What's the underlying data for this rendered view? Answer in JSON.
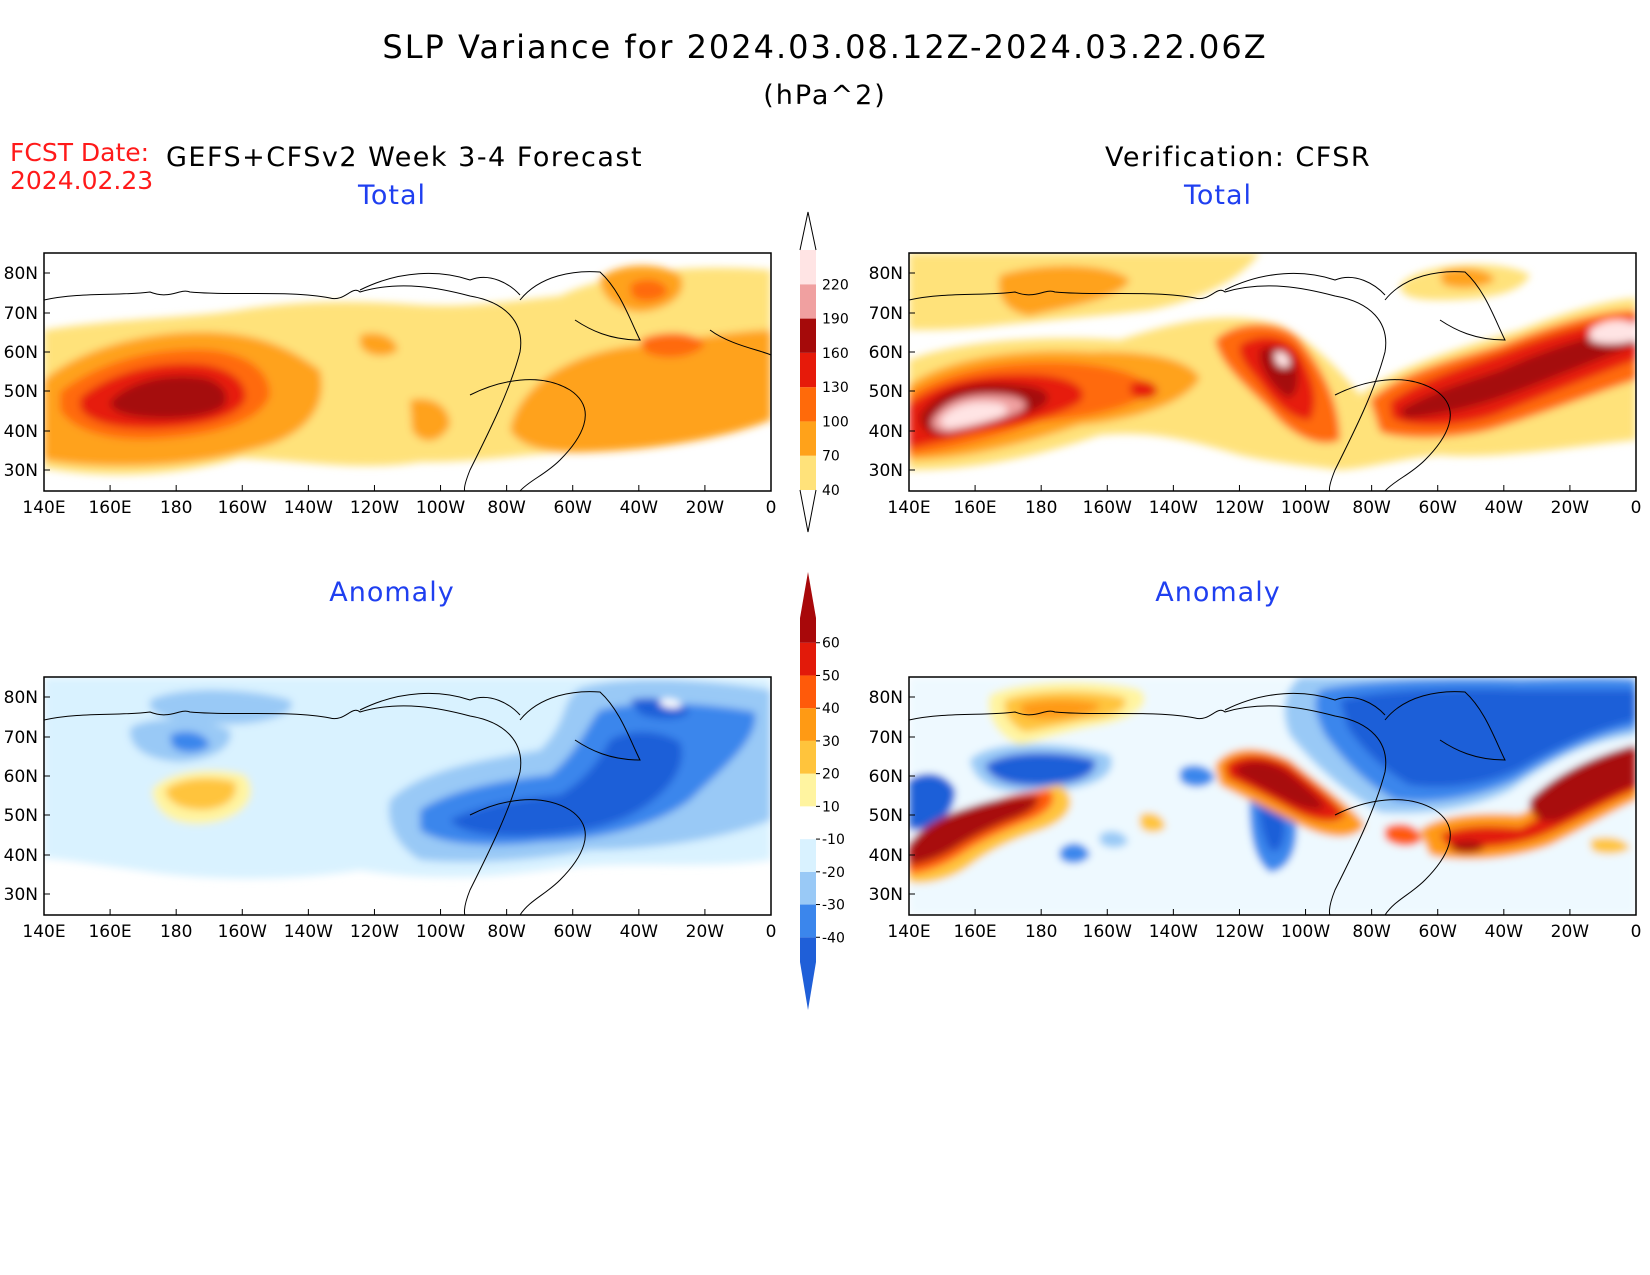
{
  "title": "SLP Variance for 2024.03.08.12Z-2024.03.22.06Z",
  "units": "(hPa^2)",
  "forecast_date_label": "FCST Date:",
  "forecast_date": "2024.02.23",
  "left_header": "GEFS+CFSv2 Week 3-4 Forecast",
  "right_header": "Verification: CFSR",
  "panels": {
    "fc_total": {
      "subtitle": "Total"
    },
    "ver_total": {
      "subtitle": "Total"
    },
    "fc_anom": {
      "subtitle": "Anomaly"
    },
    "ver_anom": {
      "subtitle": "Anomaly"
    }
  },
  "lon_ticks": [
    "140E",
    "160E",
    "180",
    "160W",
    "140W",
    "120W",
    "100W",
    "80W",
    "60W",
    "40W",
    "20W",
    "0"
  ],
  "lat_ticks": [
    "80N",
    "70N",
    "60N",
    "50N",
    "40N",
    "30N"
  ],
  "total_colorbar": {
    "levels": [
      "40",
      "70",
      "100",
      "130",
      "160",
      "190",
      "220"
    ],
    "colors": [
      "#ffe27a",
      "#ffa21a",
      "#ff6a0a",
      "#e61a0a",
      "#a50a0a",
      "#f0a0a0",
      "#ffe4e4"
    ]
  },
  "anomaly_colorbar": {
    "levels": [
      "-40",
      "-30",
      "-20",
      "-10",
      "10",
      "20",
      "30",
      "40",
      "50",
      "60"
    ],
    "colors": [
      "#1f5fd8",
      "#3b86ec",
      "#99c9f6",
      "#d9f2ff",
      "#ffffff",
      "#fff4a0",
      "#ffc43c",
      "#ff9a14",
      "#ff5a0a",
      "#e21a0a",
      "#a8080a"
    ]
  },
  "chart_data": [
    {
      "type": "heatmap",
      "panel": "GEFS+CFSv2 Week 3-4 Forecast - Total",
      "features": [
        {
          "lon": 180,
          "lat": 48,
          "value": 160
        },
        {
          "lon": 40,
          "lat": 73,
          "value": 100
        },
        {
          "lon": 60,
          "lat": 50,
          "value": 100
        }
      ]
    },
    {
      "type": "heatmap",
      "panel": "Verification: CFSR - Total",
      "features": [
        {
          "lon": 160,
          "lat": 43,
          "value": 220
        },
        {
          "lon": 105,
          "lat": 58,
          "value": 190
        },
        {
          "lon": 20,
          "lat": 62,
          "value": 190
        },
        {
          "lon": 60,
          "lat": 45,
          "value": 160
        }
      ]
    },
    {
      "type": "heatmap",
      "panel": "GEFS+CFSv2 Week 3-4 Forecast - Anomaly",
      "features": [
        {
          "lon": 80,
          "lat": 50,
          "value": -30
        },
        {
          "lon": 40,
          "lat": 65,
          "value": -30
        },
        {
          "lon": 175,
          "lat": 52,
          "value": 20
        }
      ]
    },
    {
      "type": "heatmap",
      "panel": "Verification: CFSR - Anomaly",
      "features": [
        {
          "lon": 160,
          "lat": 42,
          "value": 60
        },
        {
          "lon": 105,
          "lat": 58,
          "value": 60
        },
        {
          "lon": 20,
          "lat": 62,
          "value": 60
        },
        {
          "lon": 60,
          "lat": 70,
          "value": -40
        },
        {
          "lon": 150,
          "lat": 60,
          "value": -40
        },
        {
          "lon": 170,
          "lat": 75,
          "value": 30
        }
      ]
    }
  ]
}
